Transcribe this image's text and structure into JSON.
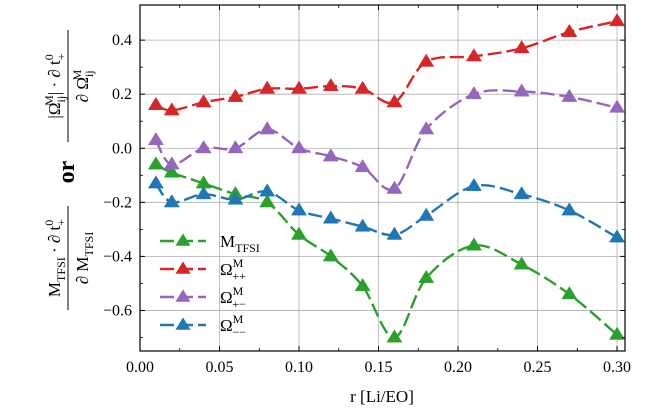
{
  "chart_data": {
    "type": "line",
    "xlabel": "r [Li/EO]",
    "ylabel": {
      "lower_numerator": "M_TFSI · ∂ t+0",
      "lower_denominator": "∂ M_TFSI",
      "connector": "or",
      "upper_numerator": "|Ω_ij^M| · ∂ t+0",
      "upper_denominator": "∂ Ω_ij^M"
    },
    "xlim": [
      0.0,
      0.305
    ],
    "ylim": [
      -0.75,
      0.53
    ],
    "xticks": [
      0.0,
      0.05,
      0.1,
      0.15,
      0.2,
      0.25,
      0.3
    ],
    "xtick_labels": [
      "0.00",
      "0.05",
      "0.10",
      "0.15",
      "0.20",
      "0.25",
      "0.30"
    ],
    "yticks": [
      -0.6,
      -0.4,
      -0.2,
      0.0,
      0.2,
      0.4
    ],
    "ytick_labels": [
      "−0.6",
      "−0.4",
      "−0.2",
      "0.0",
      "0.2",
      "0.4"
    ],
    "grid": true,
    "legend_position": "lower-left",
    "x": [
      0.01,
      0.02,
      0.04,
      0.06,
      0.08,
      0.1,
      0.12,
      0.14,
      0.16,
      0.18,
      0.21,
      0.24,
      0.27,
      0.3
    ],
    "series": [
      {
        "name": "M_TFSI",
        "legend": {
          "base": "M",
          "sub": "TFSI",
          "sup": ""
        },
        "color": "#2ca02c",
        "values": [
          -0.06,
          -0.09,
          -0.13,
          -0.17,
          -0.2,
          -0.32,
          -0.4,
          -0.51,
          -0.7,
          -0.48,
          -0.36,
          -0.43,
          -0.54,
          -0.69
        ]
      },
      {
        "name": "Ω++M",
        "legend": {
          "base": "Ω",
          "sub": "++",
          "sup": "M"
        },
        "color": "#d62728",
        "values": [
          0.16,
          0.14,
          0.17,
          0.19,
          0.22,
          0.22,
          0.23,
          0.22,
          0.17,
          0.32,
          0.34,
          0.37,
          0.43,
          0.47
        ]
      },
      {
        "name": "Ω+−M",
        "legend": {
          "base": "Ω",
          "sub": "+−",
          "sup": "M"
        },
        "color": "#9467bd",
        "values": [
          0.03,
          -0.06,
          0.0,
          0.0,
          0.07,
          0.0,
          -0.03,
          -0.07,
          -0.15,
          0.07,
          0.2,
          0.21,
          0.19,
          0.15
        ]
      },
      {
        "name": "Ω−−M",
        "legend": {
          "base": "Ω",
          "sub": "−−",
          "sup": "M"
        },
        "color": "#1f77b4",
        "values": [
          -0.13,
          -0.2,
          -0.17,
          -0.19,
          -0.16,
          -0.23,
          -0.26,
          -0.29,
          -0.32,
          -0.25,
          -0.14,
          -0.17,
          -0.23,
          -0.33
        ]
      }
    ]
  }
}
